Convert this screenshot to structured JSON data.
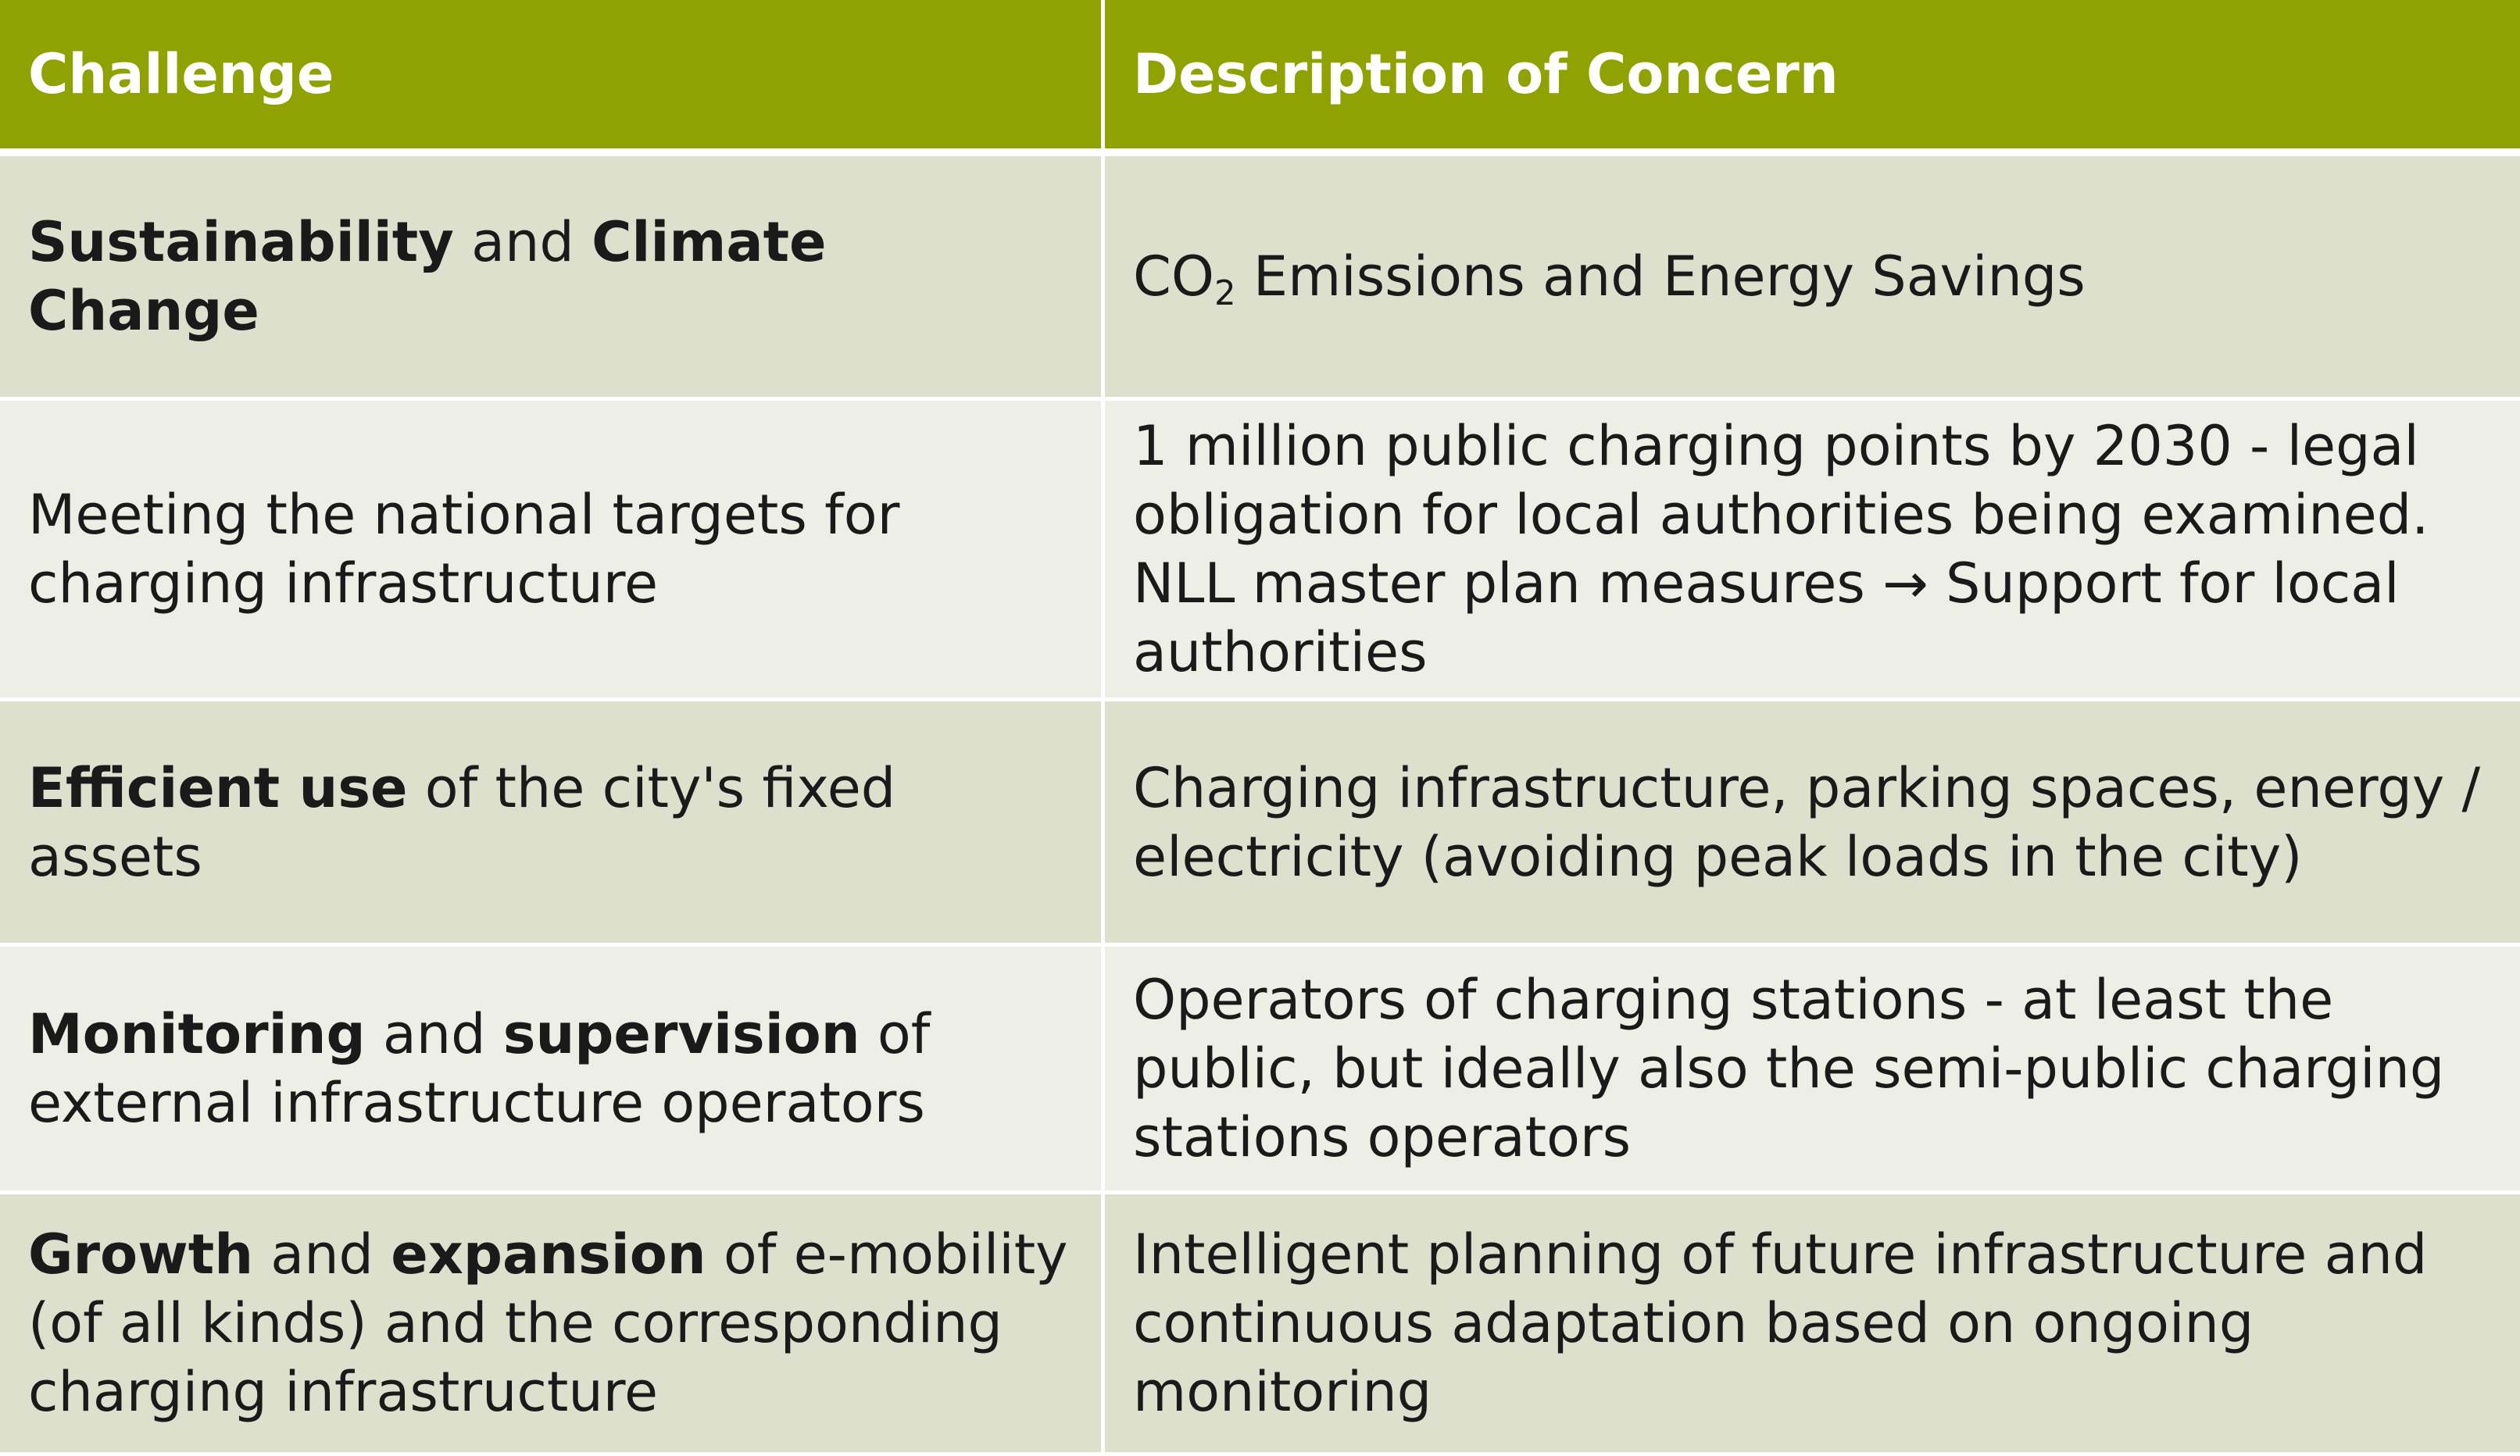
{
  "header": {
    "col1": "Challenge",
    "col2": "Description of Concern"
  },
  "rows": [
    {
      "challenge": {
        "b1": "Sustainability",
        "t1": " and ",
        "b2": "Climate Change"
      },
      "description": {
        "pre": "CO",
        "sub": "2",
        "post": " Emissions and Energy Savings"
      }
    },
    {
      "challenge": {
        "t1": "Meeting the national targets for charging infrastructure"
      },
      "description": {
        "text": "1 million public charging points by 2030 - legal obligation for local authorities being examined. NLL master plan measures → Support for local authorities"
      }
    },
    {
      "challenge": {
        "b1": "Efficient use",
        "t1": " of the city's fixed assets"
      },
      "description": {
        "text": "Charging infrastructure, parking spaces, energy / electricity (avoiding peak loads in the city)"
      }
    },
    {
      "challenge": {
        "b1": "Monitoring",
        "t1": " and ",
        "b2": "supervision",
        "t2": " of external infrastructure operators"
      },
      "description": {
        "text": "Operators of charging stations - at least the public, but ideally also the semi-public charging stations operators"
      }
    },
    {
      "challenge": {
        "b1": "Growth",
        "t1": " and ",
        "b2": "expansion",
        "t2": " of e-mobility (of all kinds) and the corresponding charging infrastructure"
      },
      "description": {
        "text": "Intelligent planning of future infrastructure and continuous adaptation based on ongoing monitoring"
      }
    }
  ]
}
